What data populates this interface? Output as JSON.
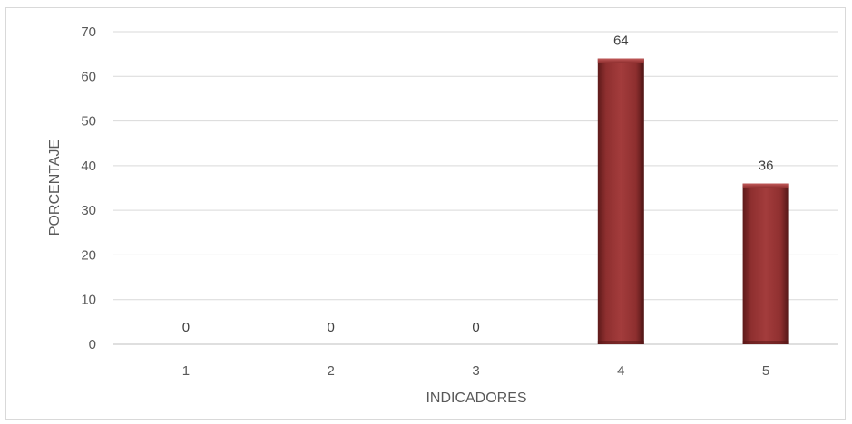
{
  "chart_data": {
    "type": "bar",
    "categories": [
      "1",
      "2",
      "3",
      "4",
      "5"
    ],
    "values": [
      0,
      0,
      0,
      64,
      36
    ],
    "data_labels": [
      "0",
      "0",
      "0",
      "64",
      "36"
    ],
    "title": "",
    "xlabel": "INDICADORES",
    "ylabel": "PORCENTAJE",
    "ylim": [
      0,
      70
    ],
    "y_ticks": [
      0,
      10,
      20,
      30,
      40,
      50,
      60,
      70
    ],
    "grid": true,
    "legend": "none",
    "bar_color": "#9b3535"
  }
}
